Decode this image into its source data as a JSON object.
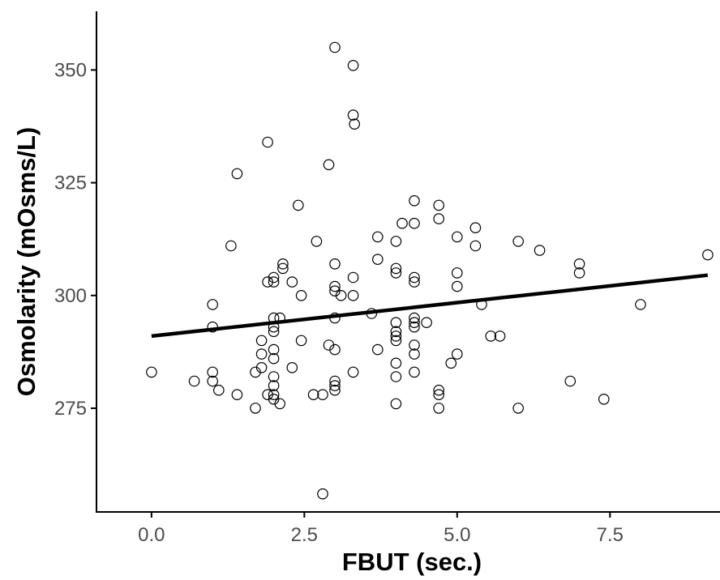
{
  "chart_data": {
    "type": "scatter",
    "title": "",
    "xlabel": "FBUT (sec.)",
    "ylabel": "Osmolarity (mOsms/L)",
    "xlim": [
      -0.9,
      9.3
    ],
    "ylim": [
      252,
      363
    ],
    "x_ticks": [
      0.0,
      2.5,
      5.0,
      7.5
    ],
    "x_tick_labels": [
      "0.0",
      "2.5",
      "5.0",
      "7.5"
    ],
    "y_ticks": [
      275,
      300,
      325,
      350
    ],
    "y_tick_labels": [
      "275",
      "300",
      "325",
      "350"
    ],
    "grid": false,
    "legend": "none",
    "marker": "open-circle",
    "points": [
      {
        "x": 0.0,
        "y": 283
      },
      {
        "x": 0.7,
        "y": 281
      },
      {
        "x": 1.0,
        "y": 298
      },
      {
        "x": 1.0,
        "y": 293
      },
      {
        "x": 1.0,
        "y": 283
      },
      {
        "x": 1.0,
        "y": 281
      },
      {
        "x": 1.1,
        "y": 279
      },
      {
        "x": 1.3,
        "y": 311
      },
      {
        "x": 1.4,
        "y": 327
      },
      {
        "x": 1.4,
        "y": 278
      },
      {
        "x": 1.7,
        "y": 283
      },
      {
        "x": 1.7,
        "y": 275
      },
      {
        "x": 1.8,
        "y": 290
      },
      {
        "x": 1.8,
        "y": 287
      },
      {
        "x": 1.8,
        "y": 284
      },
      {
        "x": 1.9,
        "y": 334
      },
      {
        "x": 1.9,
        "y": 303
      },
      {
        "x": 1.9,
        "y": 278
      },
      {
        "x": 2.0,
        "y": 304
      },
      {
        "x": 2.0,
        "y": 303
      },
      {
        "x": 2.0,
        "y": 295
      },
      {
        "x": 2.0,
        "y": 293
      },
      {
        "x": 2.0,
        "y": 292
      },
      {
        "x": 2.0,
        "y": 288
      },
      {
        "x": 2.0,
        "y": 286
      },
      {
        "x": 2.0,
        "y": 282
      },
      {
        "x": 2.0,
        "y": 280
      },
      {
        "x": 2.0,
        "y": 278
      },
      {
        "x": 2.0,
        "y": 277
      },
      {
        "x": 2.1,
        "y": 295
      },
      {
        "x": 2.1,
        "y": 276
      },
      {
        "x": 2.15,
        "y": 307
      },
      {
        "x": 2.15,
        "y": 306
      },
      {
        "x": 2.3,
        "y": 303
      },
      {
        "x": 2.3,
        "y": 284
      },
      {
        "x": 2.4,
        "y": 320
      },
      {
        "x": 2.45,
        "y": 300
      },
      {
        "x": 2.45,
        "y": 290
      },
      {
        "x": 2.65,
        "y": 278
      },
      {
        "x": 2.7,
        "y": 312
      },
      {
        "x": 2.8,
        "y": 278
      },
      {
        "x": 2.8,
        "y": 256
      },
      {
        "x": 2.9,
        "y": 329
      },
      {
        "x": 2.9,
        "y": 289
      },
      {
        "x": 3.0,
        "y": 355
      },
      {
        "x": 3.0,
        "y": 307
      },
      {
        "x": 3.0,
        "y": 302
      },
      {
        "x": 3.0,
        "y": 301
      },
      {
        "x": 3.0,
        "y": 295
      },
      {
        "x": 3.0,
        "y": 288
      },
      {
        "x": 3.0,
        "y": 281
      },
      {
        "x": 3.0,
        "y": 280
      },
      {
        "x": 3.0,
        "y": 279
      },
      {
        "x": 3.1,
        "y": 300
      },
      {
        "x": 3.3,
        "y": 351
      },
      {
        "x": 3.3,
        "y": 340
      },
      {
        "x": 3.3,
        "y": 304
      },
      {
        "x": 3.3,
        "y": 300
      },
      {
        "x": 3.3,
        "y": 283
      },
      {
        "x": 3.32,
        "y": 338
      },
      {
        "x": 3.6,
        "y": 296
      },
      {
        "x": 3.7,
        "y": 313
      },
      {
        "x": 3.7,
        "y": 308
      },
      {
        "x": 3.7,
        "y": 288
      },
      {
        "x": 4.0,
        "y": 312
      },
      {
        "x": 4.0,
        "y": 306
      },
      {
        "x": 4.0,
        "y": 305
      },
      {
        "x": 4.0,
        "y": 294
      },
      {
        "x": 4.0,
        "y": 292
      },
      {
        "x": 4.0,
        "y": 291
      },
      {
        "x": 4.0,
        "y": 290
      },
      {
        "x": 4.0,
        "y": 285
      },
      {
        "x": 4.0,
        "y": 282
      },
      {
        "x": 4.0,
        "y": 276
      },
      {
        "x": 4.1,
        "y": 316
      },
      {
        "x": 4.3,
        "y": 321
      },
      {
        "x": 4.3,
        "y": 316
      },
      {
        "x": 4.3,
        "y": 304
      },
      {
        "x": 4.3,
        "y": 303
      },
      {
        "x": 4.3,
        "y": 295
      },
      {
        "x": 4.3,
        "y": 294
      },
      {
        "x": 4.3,
        "y": 293
      },
      {
        "x": 4.3,
        "y": 289
      },
      {
        "x": 4.3,
        "y": 287
      },
      {
        "x": 4.3,
        "y": 283
      },
      {
        "x": 4.5,
        "y": 294
      },
      {
        "x": 4.7,
        "y": 320
      },
      {
        "x": 4.7,
        "y": 317
      },
      {
        "x": 4.7,
        "y": 279
      },
      {
        "x": 4.7,
        "y": 278
      },
      {
        "x": 4.7,
        "y": 275
      },
      {
        "x": 4.9,
        "y": 285
      },
      {
        "x": 5.0,
        "y": 313
      },
      {
        "x": 5.0,
        "y": 305
      },
      {
        "x": 5.0,
        "y": 302
      },
      {
        "x": 5.0,
        "y": 287
      },
      {
        "x": 5.3,
        "y": 315
      },
      {
        "x": 5.3,
        "y": 311
      },
      {
        "x": 5.4,
        "y": 298
      },
      {
        "x": 5.55,
        "y": 291
      },
      {
        "x": 5.7,
        "y": 291
      },
      {
        "x": 6.0,
        "y": 312
      },
      {
        "x": 6.0,
        "y": 275
      },
      {
        "x": 6.35,
        "y": 310
      },
      {
        "x": 6.85,
        "y": 281
      },
      {
        "x": 7.0,
        "y": 307
      },
      {
        "x": 7.0,
        "y": 305
      },
      {
        "x": 7.4,
        "y": 277
      },
      {
        "x": 8.0,
        "y": 298
      },
      {
        "x": 9.1,
        "y": 309
      }
    ],
    "trend_line": {
      "x": [
        0.0,
        9.1
      ],
      "y": [
        291.0,
        304.5
      ]
    }
  }
}
